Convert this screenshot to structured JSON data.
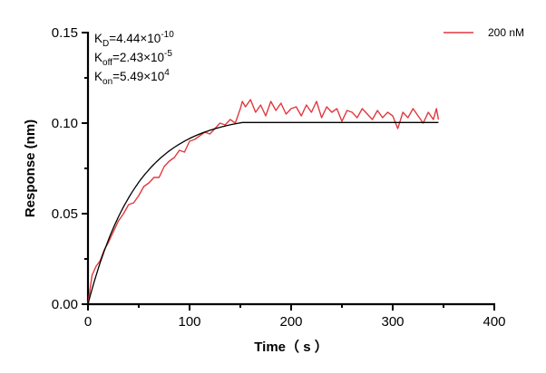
{
  "chart_data": {
    "type": "line",
    "xlabel": "Time（ s ）",
    "ylabel": "Response (nm)",
    "xlim": [
      0,
      400
    ],
    "ylim": [
      0,
      0.15
    ],
    "x_ticks": [
      "0",
      "100",
      "200",
      "300",
      "400"
    ],
    "y_ticks": [
      "0.00",
      "0.05",
      "0.10",
      "0.15"
    ],
    "grid": false,
    "legend": "top-right",
    "kinetics": [
      {
        "sym": "K",
        "sub": "D",
        "eq": "=4.44×10",
        "sup": "-10"
      },
      {
        "sym": "K",
        "sub": "off",
        "eq": "=2.43×10",
        "sup": "-5"
      },
      {
        "sym": "K",
        "sub": "on",
        "eq": "=5.49×10",
        "sup": "4"
      }
    ],
    "series": [
      {
        "name": "200 nM",
        "color": "#e0393e",
        "x": [
          0,
          4,
          8,
          12,
          16,
          20,
          25,
          30,
          35,
          40,
          45,
          50,
          55,
          60,
          65,
          70,
          75,
          80,
          85,
          90,
          95,
          100,
          105,
          110,
          115,
          120,
          125,
          130,
          135,
          140,
          145,
          150,
          152,
          155,
          160,
          165,
          170,
          175,
          180,
          185,
          190,
          195,
          200,
          205,
          210,
          215,
          220,
          225,
          230,
          235,
          240,
          245,
          250,
          255,
          260,
          265,
          270,
          275,
          280,
          285,
          290,
          295,
          300,
          305,
          310,
          315,
          320,
          325,
          330,
          335,
          340,
          343,
          345
        ],
        "y": [
          0.0,
          0.016,
          0.021,
          0.024,
          0.03,
          0.034,
          0.04,
          0.046,
          0.05,
          0.055,
          0.056,
          0.06,
          0.065,
          0.067,
          0.07,
          0.07,
          0.076,
          0.079,
          0.081,
          0.085,
          0.084,
          0.09,
          0.091,
          0.093,
          0.095,
          0.094,
          0.097,
          0.1,
          0.099,
          0.102,
          0.1,
          0.108,
          0.112,
          0.109,
          0.113,
          0.106,
          0.11,
          0.104,
          0.112,
          0.107,
          0.111,
          0.105,
          0.108,
          0.109,
          0.104,
          0.11,
          0.106,
          0.112,
          0.103,
          0.109,
          0.106,
          0.108,
          0.101,
          0.107,
          0.106,
          0.103,
          0.108,
          0.105,
          0.102,
          0.107,
          0.103,
          0.106,
          0.104,
          0.097,
          0.106,
          0.103,
          0.108,
          0.104,
          0.1,
          0.106,
          0.102,
          0.108,
          0.102
        ]
      }
    ],
    "fit": {
      "color": "#000000",
      "plateau": 0.105,
      "k": 0.0205,
      "t_end_assoc": 152,
      "t_end": 345
    }
  }
}
